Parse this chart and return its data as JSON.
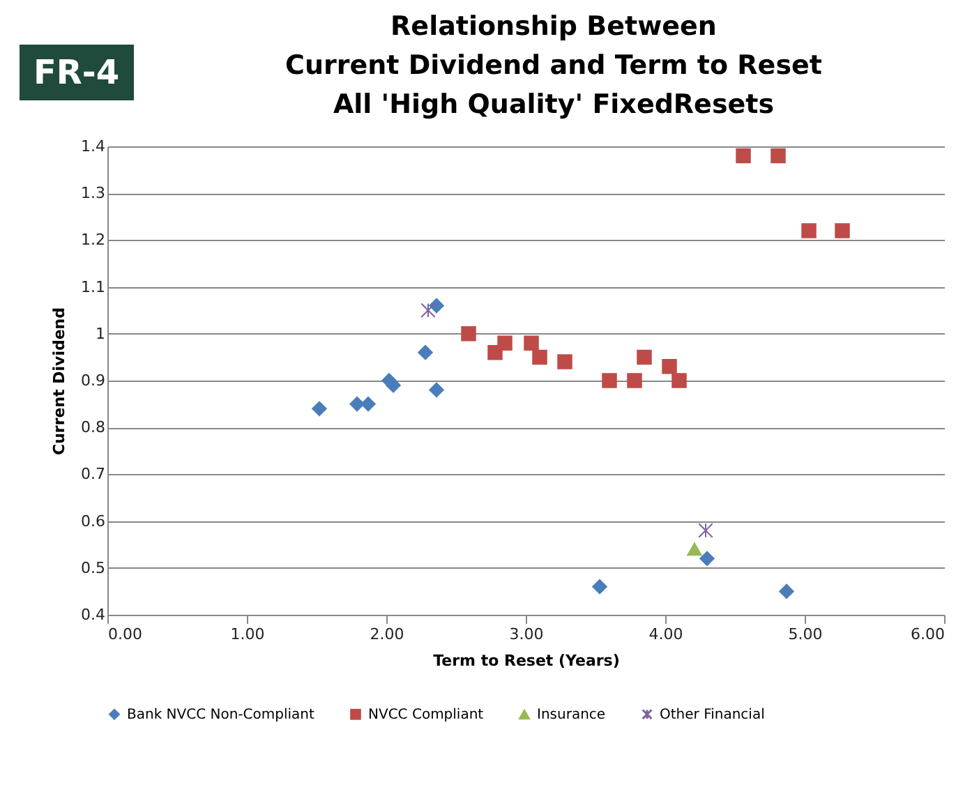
{
  "chart_data": {
    "type": "scatter",
    "title": [
      "Relationship Between",
      "Current Dividend and Term to Reset",
      "All 'High Quality' FixedResets"
    ],
    "xlabel": "Term to Reset (Years)",
    "ylabel": "Current Dividend",
    "annotations": [
      "FR-4"
    ],
    "xlim": [
      0,
      6
    ],
    "xticks": [
      {
        "value": 0,
        "label": "0.00"
      },
      {
        "value": 1,
        "label": "1.00"
      },
      {
        "value": 2,
        "label": "2.00"
      },
      {
        "value": 3,
        "label": "3.00"
      },
      {
        "value": 4,
        "label": "4.00"
      },
      {
        "value": 5,
        "label": "5.00"
      },
      {
        "value": 6,
        "label": "6.00"
      }
    ],
    "ylim": [
      0.4,
      1.4
    ],
    "yticks": [
      0.4,
      0.5,
      0.6,
      0.7,
      0.8,
      0.9,
      {
        "value": 1,
        "label": "1"
      },
      1.1,
      1.2,
      1.3,
      1.4
    ],
    "grid": "y",
    "legend": "bottom",
    "series": [
      {
        "name": "Bank NVCC Non-Compliant",
        "color": "#4a7ebb",
        "marker": "diamond",
        "x": [
          1.52,
          1.79,
          1.87,
          2.02,
          2.05,
          2.28,
          2.36,
          2.36,
          3.53,
          4.3,
          4.87
        ],
        "values": [
          0.84,
          0.85,
          0.85,
          0.9,
          0.89,
          0.96,
          1.06,
          0.88,
          0.46,
          0.52,
          0.45
        ]
      },
      {
        "name": "NVCC Compliant",
        "color": "#be4b48",
        "marker": "square",
        "x": [
          2.59,
          2.78,
          2.85,
          3.04,
          3.1,
          3.28,
          3.6,
          3.78,
          3.85,
          4.03,
          4.1,
          4.56,
          4.81,
          5.03,
          5.27
        ],
        "values": [
          1.0,
          0.96,
          0.98,
          0.98,
          0.95,
          0.94,
          0.9,
          0.9,
          0.95,
          0.93,
          0.9,
          1.38,
          1.38,
          1.22,
          1.22
        ]
      },
      {
        "name": "Insurance",
        "color": "#98b954",
        "marker": "triangle",
        "x": [
          4.21
        ],
        "values": [
          0.54
        ]
      },
      {
        "name": "Other Financial",
        "color": "#7d60a0",
        "marker": "cross",
        "x": [
          2.3,
          4.29
        ],
        "values": [
          1.05,
          0.58
        ]
      }
    ]
  }
}
